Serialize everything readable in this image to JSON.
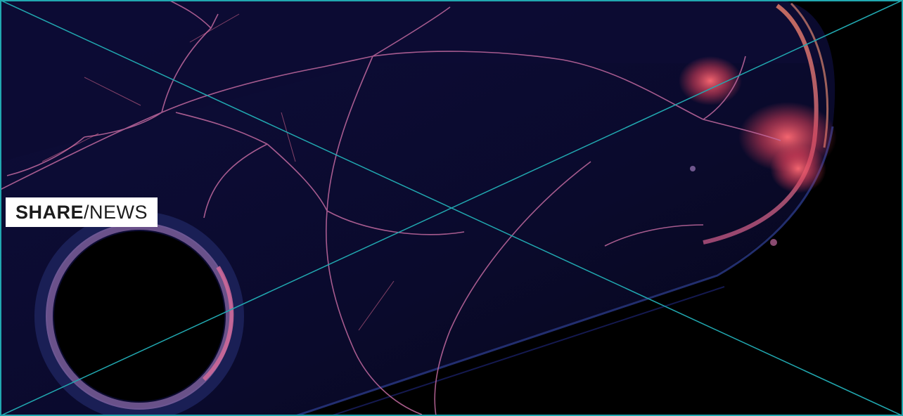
{
  "label": {
    "word1": "SHARE",
    "separator": "/",
    "word2": "NEWS"
  },
  "colors": {
    "background": "#000000",
    "glass_dark": "#0b0a2e",
    "crack_pink": "#d46a9a",
    "hot_red": "#ff5566",
    "placeholder_lines": "#21a8b0",
    "label_bg": "#ffffff",
    "label_text": "#1c1c1c"
  },
  "image": {
    "subject": "shattered-glass-phone-photo",
    "placeholder_cross": true
  }
}
